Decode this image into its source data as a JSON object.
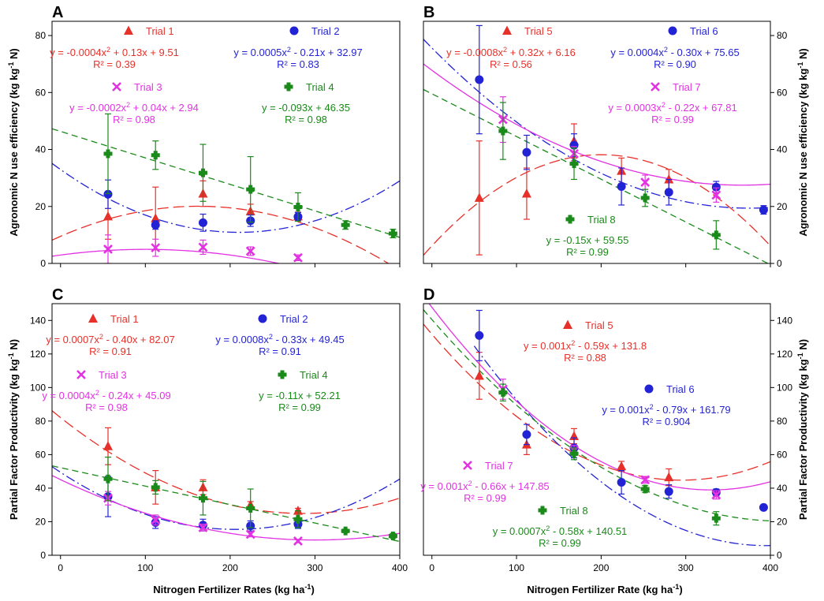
{
  "colors": {
    "red": "#e8302a",
    "blue": "#2323d6",
    "magenta": "#e233e2",
    "green": "#1a8a1a",
    "axis": "#000000"
  },
  "chart_data": [
    {
      "panel": "A",
      "type": "scatter",
      "xlim": [
        -10,
        400
      ],
      "ylim": [
        0,
        85
      ],
      "xticks": [
        0,
        100,
        200,
        300,
        400
      ],
      "yticks": [
        0,
        20,
        40,
        60,
        80
      ],
      "xticklabels": [
        "",
        "",
        "",
        "",
        ""
      ],
      "yticklabels": [
        "0",
        "20",
        "40",
        "60",
        "80"
      ],
      "ytick_side": "left",
      "ylabel": "Agronomic N use efficiency (kg kg",
      "ylabel_sup": "-1",
      "ylabel_end": " N)",
      "ylabel_side": "left",
      "xlabel": "",
      "xlabel_sup": "",
      "xlabel_end": "",
      "series": [
        {
          "name": "Trial 1",
          "color": "red",
          "marker": "triangle",
          "dash": "14,6",
          "x": [
            56,
            112,
            168,
            224,
            280
          ],
          "y": [
            16.5,
            15.8,
            24.5,
            18.3,
            16.5
          ],
          "err": [
            8,
            11,
            4.5,
            2.5,
            1.5
          ],
          "fit": [
            -0.0004,
            0.13,
            9.51
          ],
          "fit_range": [
            -10,
            400
          ],
          "legend_label": "Trial 1",
          "equation": "y = -0.0004x",
          "equation_sup": "2",
          "equation_end": " + 0.13x + 9.51",
          "r2": "R² = 0.39"
        },
        {
          "name": "Trial 2",
          "color": "blue",
          "marker": "circle",
          "dash": "12,4,2,4",
          "x": [
            56,
            112,
            168,
            224,
            280
          ],
          "y": [
            24.3,
            13.5,
            14.3,
            15,
            16.4
          ],
          "err": [
            5,
            1.5,
            3,
            2,
            1.5
          ],
          "fit": [
            0.0005,
            -0.21,
            32.97
          ],
          "fit_range": [
            -10,
            400
          ],
          "legend_label": "Trial 2",
          "equation": "y = 0.0005x",
          "equation_sup": "2",
          "equation_end": " - 0.21x + 32.97",
          "r2": "R² = 0.83"
        },
        {
          "name": "Trial 3",
          "color": "magenta",
          "marker": "x",
          "dash": "none",
          "x": [
            56,
            112,
            168,
            224,
            280
          ],
          "y": [
            5,
            5.5,
            5.7,
            4.3,
            2
          ],
          "err": [
            5,
            3,
            2.5,
            1.5,
            1
          ],
          "fit": [
            -0.0002,
            0.04,
            2.94
          ],
          "fit_range": [
            -10,
            330
          ],
          "legend_label": "Trial 3",
          "equation": "y = -0.0002x",
          "equation_sup": "2",
          "equation_end": " + 0.04x + 2.94",
          "r2": "R² = 0.98"
        },
        {
          "name": "Trial 4",
          "color": "green",
          "marker": "plus",
          "dash": "8,5",
          "x": [
            56,
            112,
            168,
            224,
            280,
            336,
            392
          ],
          "y": [
            38.5,
            38,
            31.8,
            26,
            19.8,
            13.5,
            10.5
          ],
          "err": [
            14,
            5,
            10,
            11.5,
            5,
            1.5,
            1.5
          ],
          "fit": [
            0,
            -0.093,
            46.35
          ],
          "fit_range": [
            -10,
            400
          ],
          "legend_label": "Trial 4",
          "equation": "y = -0.093x + 46.35",
          "equation_sup": "",
          "equation_end": "",
          "r2": "R² = 0.98"
        }
      ]
    },
    {
      "panel": "B",
      "type": "scatter",
      "xlim": [
        -10,
        400
      ],
      "ylim": [
        0,
        85
      ],
      "xticks": [
        0,
        100,
        200,
        300,
        400
      ],
      "yticks": [
        0,
        20,
        40,
        60,
        80
      ],
      "xticklabels": [
        "",
        "",
        "",
        "",
        ""
      ],
      "yticklabels": [
        "0",
        "20",
        "40",
        "60",
        "80"
      ],
      "ytick_side": "right",
      "ylabel": "Agronomic N use efficiency (kg kg",
      "ylabel_sup": "-1",
      "ylabel_end": " N)",
      "ylabel_side": "right",
      "xlabel": "",
      "xlabel_sup": "",
      "xlabel_end": "",
      "series": [
        {
          "name": "Trial 5",
          "color": "red",
          "marker": "triangle",
          "dash": "14,6",
          "x": [
            56,
            112,
            168,
            224,
            280
          ],
          "y": [
            23,
            24.5,
            43,
            32.5,
            29.5
          ],
          "err": [
            20,
            9,
            6,
            4.5,
            3.5
          ],
          "fit": [
            -0.0008,
            0.32,
            6.16
          ],
          "fit_range": [
            -10,
            400
          ],
          "legend_label": "Trial 5",
          "equation": "y = -0.0008x",
          "equation_sup": "2",
          "equation_end": " + 0.32x + 6.16",
          "r2": "R² = 0.56"
        },
        {
          "name": "Trial 6",
          "color": "blue",
          "marker": "circle",
          "dash": "12,4,2,4",
          "x": [
            56,
            112,
            168,
            224,
            280,
            336,
            392
          ],
          "y": [
            64.5,
            39,
            41.5,
            27,
            25,
            26.8,
            18.8
          ],
          "err": [
            19,
            6,
            4,
            6.5,
            4.5,
            2,
            1.5
          ],
          "fit": [
            0.0004,
            -0.3,
            75.65
          ],
          "fit_range": [
            -10,
            400
          ],
          "legend_label": "Trial 6",
          "equation": "y = 0.0004x",
          "equation_sup": "2",
          "equation_end": " - 0.30x + 75.65",
          "r2": "R² = 0.90"
        },
        {
          "name": "Trial 7",
          "color": "magenta",
          "marker": "x",
          "dash": "none",
          "x": [
            84,
            168,
            252,
            336
          ],
          "y": [
            50.5,
            38.5,
            28.5,
            24
          ],
          "err": [
            8,
            2.5,
            2.5,
            2.5
          ],
          "fit": [
            0.0003,
            -0.22,
            67.81
          ],
          "fit_range": [
            -10,
            400
          ],
          "legend_label": "Trial 7",
          "equation": "y = 0.0003x",
          "equation_sup": "2",
          "equation_end": " - 0.22x + 67.81",
          "r2": "R² = 0.99"
        },
        {
          "name": "Trial 8",
          "color": "green",
          "marker": "plus",
          "dash": "8,5",
          "x": [
            84,
            168,
            252,
            336
          ],
          "y": [
            46.5,
            35,
            23,
            10
          ],
          "err": [
            10,
            5.5,
            3,
            5
          ],
          "fit": [
            0,
            -0.15,
            59.55
          ],
          "fit_range": [
            -10,
            400
          ],
          "legend_label": "Trial 8",
          "equation": "y = -0.15x + 59.55",
          "equation_sup": "",
          "equation_end": "",
          "r2": "R² = 0.99"
        }
      ]
    },
    {
      "panel": "C",
      "type": "scatter",
      "xlim": [
        -10,
        400
      ],
      "ylim": [
        0,
        150
      ],
      "xticks": [
        0,
        100,
        200,
        300,
        400
      ],
      "yticks": [
        0,
        20,
        40,
        60,
        80,
        100,
        120,
        140
      ],
      "xticklabels": [
        "0",
        "100",
        "200",
        "300",
        "400"
      ],
      "yticklabels": [
        "0",
        "20",
        "40",
        "60",
        "80",
        "100",
        "120",
        "140"
      ],
      "ytick_side": "left",
      "ylabel": "Partial Factor Productivity (kg kg",
      "ylabel_sup": "-1",
      "ylabel_end": " N)",
      "ylabel_side": "left",
      "xlabel": "Nitrogen Fertilizer Rates (kg ha",
      "xlabel_sup": "-1",
      "xlabel_end": ")",
      "series": [
        {
          "name": "Trial 1",
          "color": "red",
          "marker": "triangle",
          "dash": "14,6",
          "x": [
            56,
            112,
            168,
            224,
            280
          ],
          "y": [
            65,
            40.5,
            40.5,
            30,
            26.5
          ],
          "err": [
            11,
            10,
            4.5,
            2,
            1.5
          ],
          "fit": [
            0.0007,
            -0.4,
            82.07
          ],
          "fit_range": [
            -10,
            400
          ],
          "legend_label": "Trial 1",
          "equation": "y = 0.0007x",
          "equation_sup": "2",
          "equation_end": " - 0.40x + 82.07",
          "r2": "R² = 0.91"
        },
        {
          "name": "Trial 2",
          "color": "blue",
          "marker": "circle",
          "dash": "12,4,2,4",
          "x": [
            56,
            112,
            168,
            224,
            280
          ],
          "y": [
            35,
            19.5,
            18,
            17.5,
            18.5
          ],
          "err": [
            12,
            3.5,
            3.5,
            3,
            2.5
          ],
          "fit": [
            0.0008,
            -0.33,
            49.45
          ],
          "fit_range": [
            -10,
            400
          ],
          "legend_label": "Trial 2",
          "equation": "y = 0.0008x",
          "equation_sup": "2",
          "equation_end": " - 0.33x + 49.45",
          "r2": "R² = 0.91"
        },
        {
          "name": "Trial 3",
          "color": "magenta",
          "marker": "x",
          "dash": "none",
          "x": [
            56,
            112,
            168,
            224,
            280
          ],
          "y": [
            34,
            21,
            16.5,
            12.5,
            8.5
          ],
          "err": [
            4,
            3,
            2,
            1.5,
            1
          ],
          "fit": [
            0.0004,
            -0.24,
            45.09
          ],
          "fit_range": [
            -10,
            400
          ],
          "legend_label": "Trial 3",
          "equation": "y = 0.0004x",
          "equation_sup": "2",
          "equation_end": " - 0.24x + 45.09",
          "r2": "R² = 0.98"
        },
        {
          "name": "Trial 4",
          "color": "green",
          "marker": "plus",
          "dash": "8,5",
          "x": [
            56,
            112,
            168,
            224,
            280,
            336,
            392
          ],
          "y": [
            45.5,
            40.5,
            34,
            28,
            21.5,
            14.5,
            11.5
          ],
          "err": [
            13,
            4,
            10,
            11.5,
            5,
            1,
            1.5
          ],
          "fit": [
            0,
            -0.11,
            52.21
          ],
          "fit_range": [
            -10,
            400
          ],
          "legend_label": "Trial 4",
          "equation": "y = -0.11x + 52.21",
          "equation_sup": "",
          "equation_end": "",
          "r2": "R² = 0.99"
        }
      ]
    },
    {
      "panel": "D",
      "type": "scatter",
      "xlim": [
        -10,
        400
      ],
      "ylim": [
        0,
        150
      ],
      "xticks": [
        0,
        100,
        200,
        300,
        400
      ],
      "yticks": [
        0,
        20,
        40,
        60,
        80,
        100,
        120,
        140
      ],
      "xticklabels": [
        "0",
        "100",
        "200",
        "300",
        "400"
      ],
      "yticklabels": [
        "0",
        "20",
        "40",
        "60",
        "80",
        "100",
        "120",
        "140"
      ],
      "ytick_side": "right",
      "ylabel": "Partial Factor Productivity (kg kg",
      "ylabel_sup": "-1",
      "ylabel_end": " N)",
      "ylabel_side": "right",
      "xlabel": "Nitrogen Fertilizer Rate (kg ha",
      "xlabel_sup": "-1",
      "xlabel_end": ")",
      "series": [
        {
          "name": "Trial 5",
          "color": "red",
          "marker": "triangle",
          "dash": "14,6",
          "x": [
            56,
            112,
            168,
            224,
            280
          ],
          "y": [
            107,
            66,
            71,
            53,
            46.5
          ],
          "err": [
            14,
            6,
            4.5,
            3,
            5
          ],
          "fit": [
            0.001,
            -0.59,
            131.8
          ],
          "fit_range": [
            -10,
            400
          ],
          "legend_label": "Trial 5",
          "equation": "y = 0.001x",
          "equation_sup": "2",
          "equation_end": " - 0.59x + 131.8",
          "r2": "R² = 0.88"
        },
        {
          "name": "Trial 6",
          "color": "blue",
          "marker": "circle",
          "dash": "12,4,2,4",
          "x": [
            56,
            112,
            168,
            224,
            280,
            336,
            392
          ],
          "y": [
            131,
            72,
            64,
            43.5,
            38,
            37.5,
            28.5
          ],
          "err": [
            15,
            6,
            6,
            7,
            4,
            2,
            1.5
          ],
          "fit": [
            0.001,
            -0.79,
            161.79
          ],
          "fit_range": [
            50,
            400
          ],
          "legend_label": "Trial 6",
          "equation": "y = 0.001x",
          "equation_sup": "2",
          "equation_end": " - 0.79x + 161.79",
          "r2": "R² = 0.904"
        },
        {
          "name": "Trial 7",
          "color": "magenta",
          "marker": "x",
          "dash": "none",
          "x": [
            84,
            168,
            252,
            336
          ],
          "y": [
            99,
            62.5,
            45,
            36
          ],
          "err": [
            6,
            3,
            2,
            2.5
          ],
          "fit": [
            0.001,
            -0.66,
            147.85
          ],
          "fit_range": [
            -10,
            400
          ],
          "legend_label": "Trial 7",
          "equation": "y = 0.001x",
          "equation_sup": "2",
          "equation_end": " - 0.66x + 147.85",
          "r2": "R² = 0.99"
        },
        {
          "name": "Trial 8",
          "color": "green",
          "marker": "plus",
          "dash": "8,5",
          "x": [
            84,
            168,
            252,
            336
          ],
          "y": [
            97,
            60.5,
            39.5,
            22
          ],
          "err": [
            5,
            3.5,
            2,
            4
          ],
          "fit": [
            0.0007,
            -0.58,
            140.51
          ],
          "fit_range": [
            -10,
            400
          ],
          "legend_label": "Trial 8",
          "equation": "y = 0.0007x",
          "equation_sup": "2",
          "equation_end": " - 0.58x + 140.51",
          "r2": "R² = 0.99"
        }
      ]
    }
  ]
}
